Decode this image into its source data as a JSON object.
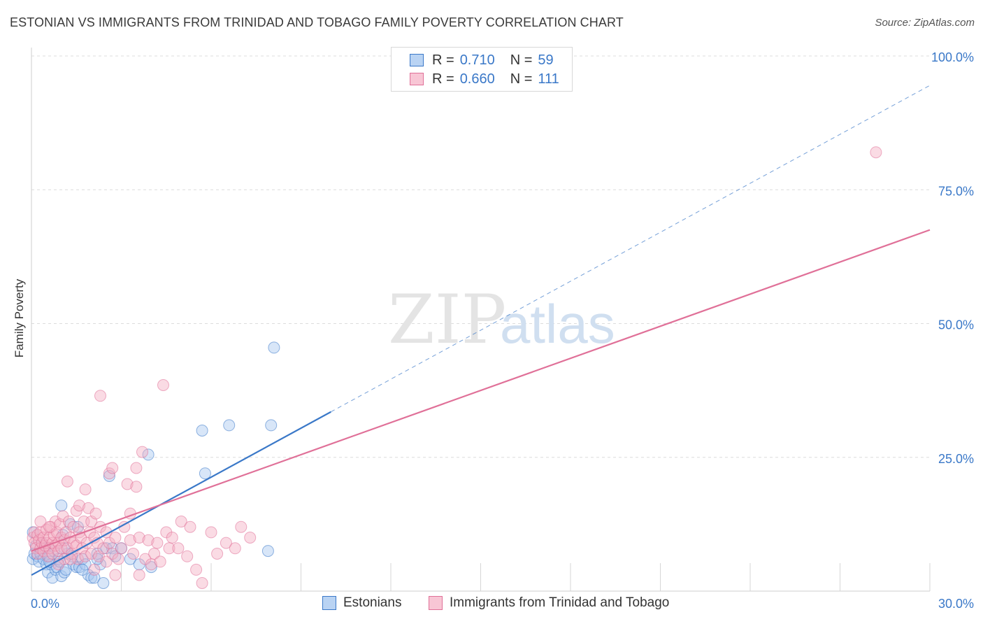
{
  "title": "ESTONIAN VS IMMIGRANTS FROM TRINIDAD AND TOBAGO FAMILY POVERTY CORRELATION CHART",
  "source": "Source: ZipAtlas.com",
  "watermark": {
    "zip": "ZIP",
    "atlas": "atlas"
  },
  "colors": {
    "blue": "#3a78c8",
    "blue_fill": "#a9c8ef",
    "pink": "#e07098",
    "pink_fill": "#f3b0c4",
    "grid": "#dcdcdc"
  },
  "legend": {
    "rows": [
      {
        "r_label": "R =",
        "r_value": "0.710",
        "n_label": "N =",
        "n_value": "59"
      },
      {
        "r_label": "R =",
        "r_value": "0.660",
        "n_label": "N =",
        "n_value": "111"
      }
    ]
  },
  "bottom_legend": [
    "Estonians",
    "Immigrants from Trinidad and Tobago"
  ],
  "chart_data": {
    "type": "scatter",
    "title": "ESTONIAN VS IMMIGRANTS FROM TRINIDAD AND TOBAGO FAMILY POVERTY CORRELATION CHART",
    "xlabel": "",
    "ylabel": "Family Poverty",
    "xlim": [
      0,
      30
    ],
    "ylim": [
      0,
      100
    ],
    "x_tick_labels": [
      "0.0%",
      "30.0%"
    ],
    "y_ticks": [
      25,
      50,
      75,
      100
    ],
    "y_tick_labels": [
      "25.0%",
      "50.0%",
      "75.0%",
      "100.0%"
    ],
    "grid": true,
    "series": [
      {
        "name": "Estonians",
        "color": "#3a78c8",
        "R": 0.71,
        "N": 59,
        "trend": {
          "x0": 0,
          "y0": 3.0,
          "x1": 10,
          "y1": 33.5,
          "dashed_to_x": 30,
          "dashed_to_y": 94.5
        },
        "points": [
          [
            0.05,
            11
          ],
          [
            0.05,
            6
          ],
          [
            0.1,
            7
          ],
          [
            0.15,
            8.5
          ],
          [
            0.2,
            6.5
          ],
          [
            0.25,
            5.5
          ],
          [
            0.3,
            7
          ],
          [
            0.35,
            9
          ],
          [
            0.4,
            6
          ],
          [
            0.45,
            8
          ],
          [
            0.5,
            5
          ],
          [
            0.55,
            3.5
          ],
          [
            0.6,
            6.5
          ],
          [
            0.65,
            5
          ],
          [
            0.7,
            2.5
          ],
          [
            0.75,
            7.5
          ],
          [
            0.8,
            4
          ],
          [
            0.85,
            4.5
          ],
          [
            0.9,
            6
          ],
          [
            0.95,
            5.5
          ],
          [
            1.0,
            2.8
          ],
          [
            1.05,
            10.5
          ],
          [
            1.1,
            3.5
          ],
          [
            1.15,
            4
          ],
          [
            1.2,
            7
          ],
          [
            1.3,
            12.5
          ],
          [
            1.35,
            6.5
          ],
          [
            1.4,
            5
          ],
          [
            1.5,
            4.5
          ],
          [
            1.55,
            12
          ],
          [
            1.6,
            4.5
          ],
          [
            1.7,
            6
          ],
          [
            1.8,
            5
          ],
          [
            1.9,
            3
          ],
          [
            2.0,
            2.5
          ],
          [
            2.1,
            2.5
          ],
          [
            2.2,
            7
          ],
          [
            2.3,
            5
          ],
          [
            2.4,
            1.5
          ],
          [
            2.5,
            8
          ],
          [
            2.6,
            21.5
          ],
          [
            2.7,
            8
          ],
          [
            2.8,
            6.5
          ],
          [
            3.0,
            8
          ],
          [
            3.3,
            6
          ],
          [
            3.6,
            5
          ],
          [
            3.9,
            25.5
          ],
          [
            4.0,
            4.5
          ],
          [
            5.7,
            30
          ],
          [
            5.8,
            22
          ],
          [
            6.6,
            31
          ],
          [
            7.9,
            7.5
          ],
          [
            8.0,
            31
          ],
          [
            8.1,
            45.5
          ],
          [
            1.0,
            16
          ],
          [
            0.6,
            5.5
          ],
          [
            1.1,
            8
          ],
          [
            1.7,
            4
          ],
          [
            2.2,
            6
          ]
        ]
      },
      {
        "name": "Immigrants from Trinidad and Tobago",
        "color": "#e07098",
        "R": 0.66,
        "N": 111,
        "trend": {
          "x0": 0,
          "y0": 7.5,
          "x1": 30,
          "y1": 67.5
        },
        "points": [
          [
            0.05,
            10
          ],
          [
            0.1,
            9
          ],
          [
            0.1,
            11
          ],
          [
            0.15,
            8
          ],
          [
            0.2,
            10.5
          ],
          [
            0.2,
            7
          ],
          [
            0.25,
            9.5
          ],
          [
            0.3,
            8
          ],
          [
            0.3,
            11
          ],
          [
            0.35,
            9
          ],
          [
            0.4,
            10
          ],
          [
            0.4,
            7.5
          ],
          [
            0.45,
            8.5
          ],
          [
            0.5,
            11.5
          ],
          [
            0.5,
            9
          ],
          [
            0.55,
            6.5
          ],
          [
            0.6,
            10
          ],
          [
            0.6,
            8
          ],
          [
            0.65,
            12
          ],
          [
            0.7,
            9
          ],
          [
            0.7,
            7
          ],
          [
            0.75,
            10.5
          ],
          [
            0.8,
            8.5
          ],
          [
            0.8,
            13
          ],
          [
            0.85,
            11
          ],
          [
            0.9,
            9
          ],
          [
            0.9,
            7.5
          ],
          [
            0.95,
            12.5
          ],
          [
            1.0,
            10
          ],
          [
            1.0,
            8
          ],
          [
            1.05,
            14
          ],
          [
            1.1,
            9.5
          ],
          [
            1.1,
            6
          ],
          [
            1.15,
            11
          ],
          [
            1.2,
            20.5
          ],
          [
            1.2,
            8
          ],
          [
            1.25,
            13
          ],
          [
            1.3,
            10
          ],
          [
            1.35,
            7
          ],
          [
            1.4,
            12
          ],
          [
            1.4,
            9
          ],
          [
            1.5,
            15
          ],
          [
            1.5,
            8.5
          ],
          [
            1.55,
            6
          ],
          [
            1.6,
            11
          ],
          [
            1.6,
            16
          ],
          [
            1.65,
            10
          ],
          [
            1.7,
            8
          ],
          [
            1.75,
            13
          ],
          [
            1.8,
            6.5
          ],
          [
            1.8,
            19
          ],
          [
            1.85,
            9
          ],
          [
            1.9,
            15.5
          ],
          [
            1.95,
            11
          ],
          [
            2.0,
            7
          ],
          [
            2.0,
            13
          ],
          [
            2.1,
            10
          ],
          [
            2.15,
            14.5
          ],
          [
            2.2,
            9
          ],
          [
            2.25,
            6.5
          ],
          [
            2.3,
            12
          ],
          [
            2.3,
            36.5
          ],
          [
            2.4,
            8
          ],
          [
            2.5,
            11
          ],
          [
            2.5,
            5.5
          ],
          [
            2.6,
            9
          ],
          [
            2.6,
            22
          ],
          [
            2.7,
            7
          ],
          [
            2.7,
            23
          ],
          [
            2.8,
            10
          ],
          [
            2.9,
            6
          ],
          [
            3.0,
            8
          ],
          [
            3.1,
            12
          ],
          [
            3.2,
            20
          ],
          [
            3.3,
            14.5
          ],
          [
            3.3,
            9.5
          ],
          [
            3.4,
            7
          ],
          [
            3.5,
            23
          ],
          [
            3.5,
            19.5
          ],
          [
            3.6,
            10
          ],
          [
            3.7,
            26
          ],
          [
            3.8,
            6
          ],
          [
            3.9,
            9.5
          ],
          [
            4.0,
            5
          ],
          [
            4.1,
            7
          ],
          [
            4.2,
            9
          ],
          [
            4.3,
            5.5
          ],
          [
            4.4,
            38.5
          ],
          [
            4.5,
            11
          ],
          [
            4.6,
            8
          ],
          [
            4.7,
            10
          ],
          [
            5.0,
            13
          ],
          [
            5.2,
            6.5
          ],
          [
            5.5,
            4
          ],
          [
            5.7,
            1.5
          ],
          [
            6.0,
            11
          ],
          [
            6.5,
            9
          ],
          [
            6.8,
            8
          ],
          [
            7.0,
            12
          ],
          [
            7.3,
            10
          ],
          [
            28.2,
            82
          ],
          [
            0.3,
            13
          ],
          [
            0.6,
            12
          ],
          [
            0.9,
            5
          ],
          [
            1.3,
            6
          ],
          [
            2.1,
            4
          ],
          [
            2.8,
            3
          ],
          [
            3.6,
            3
          ],
          [
            4.9,
            8
          ],
          [
            5.3,
            12
          ],
          [
            6.2,
            7
          ]
        ]
      }
    ]
  }
}
